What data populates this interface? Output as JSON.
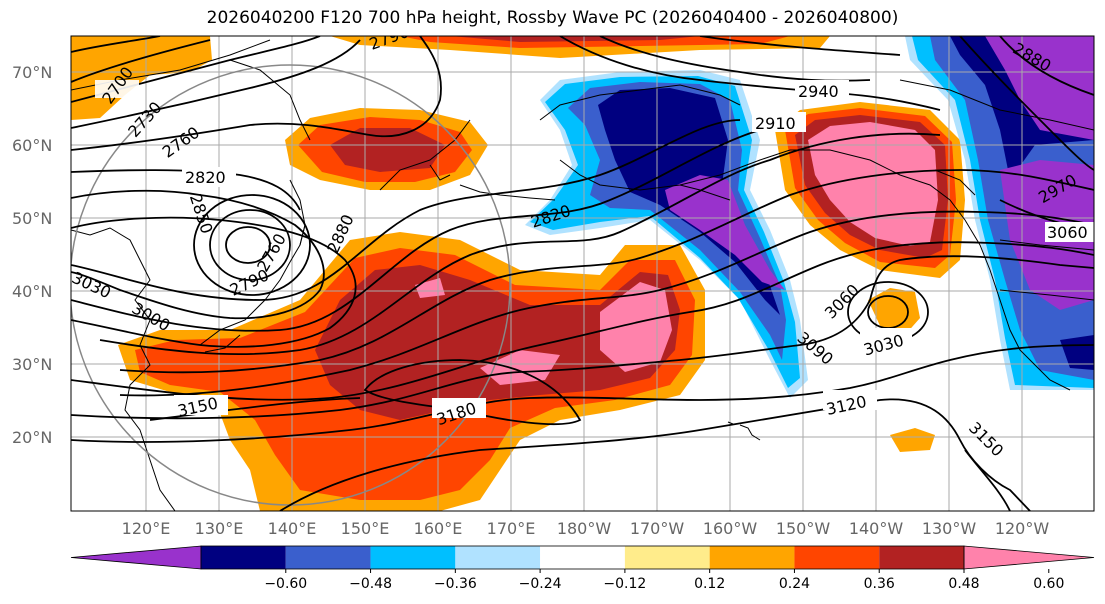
{
  "title": "2026040200 F120 700 hPa height, Rossby Wave PC (2026040400 - 2026040800)",
  "lat_labels": [
    "70°N",
    "60°N",
    "50°N",
    "40°N",
    "30°N",
    "20°N"
  ],
  "lon_labels": [
    "120°E",
    "130°E",
    "140°E",
    "150°E",
    "160°E",
    "170°E",
    "180°W",
    "170°W",
    "160°W",
    "150°W",
    "140°W",
    "130°W",
    "120°W"
  ],
  "colorbar": {
    "colors": [
      "#9932cc",
      "#000080",
      "#3a5fcd",
      "#00bfff",
      "#b0e2ff",
      "#ffffff",
      "#ffec8b",
      "#ffa500",
      "#ff4500",
      "#b22222",
      "#ff82ab"
    ],
    "tick_labels": [
      "−0.60",
      "−0.48",
      "−0.36",
      "−0.24",
      "−0.12",
      "0.12",
      "0.24",
      "0.36",
      "0.48",
      "0.60"
    ]
  },
  "contour_labels": [
    "2700",
    "2730",
    "2760",
    "2820",
    "2850",
    "2790",
    "2760",
    "2880",
    "3000",
    "3030",
    "3150",
    "3180",
    "2820",
    "2910",
    "2940",
    "2970",
    "3060",
    "3060",
    "3030",
    "3090",
    "3120",
    "3150",
    "2880",
    "2790"
  ],
  "colors": {
    "contour": "#000000",
    "grid": "#aaaaaa",
    "coast": "#000000",
    "circle": "#888888"
  }
}
